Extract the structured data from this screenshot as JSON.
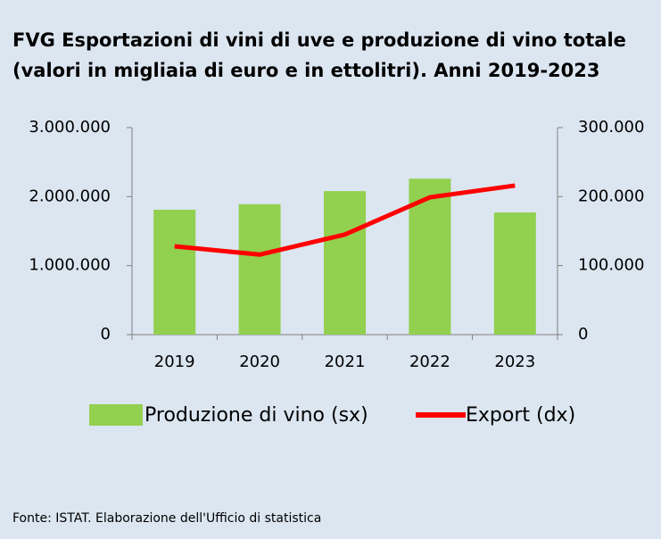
{
  "chart_data": {
    "type": "bar-line",
    "title": [
      "FVG Esportazioni di vini di uve e produzione di vino totale",
      "(valori in migliaia di euro e in ettolitri). Anni 2019-2023"
    ],
    "categories": [
      "2019",
      "2020",
      "2021",
      "2022",
      "2023"
    ],
    "series": [
      {
        "name": "Produzione di vino  (sx)",
        "color": "#92d050",
        "type": "bar",
        "values": [
          1810000,
          1890000,
          2080000,
          2260000,
          1770000
        ]
      },
      {
        "name": "Export (dx)",
        "color": "#ff0000",
        "type": "line",
        "axis": "y2",
        "values": [
          128000,
          116000,
          145000,
          199000,
          216000
        ]
      }
    ],
    "ylim": [
      0,
      3000000
    ],
    "yticks": [
      0,
      {
        "value": 1000000,
        "label": "1.000.000"
      },
      {
        "value": 2000000,
        "label": "2.000.000"
      },
      {
        "value": 3000000,
        "label": "3.000.000"
      }
    ],
    "y2lim": [
      0,
      300000
    ],
    "y2ticks": [
      0,
      {
        "value": 100000,
        "label": "100.000"
      },
      {
        "value": 200000,
        "label": "200.000"
      },
      {
        "value": 300000,
        "label": "300.000"
      }
    ],
    "grid": false,
    "legend": "bottom",
    "source": "Fonte: ISTAT. Elaborazione dell'Ufficio di statistica"
  }
}
